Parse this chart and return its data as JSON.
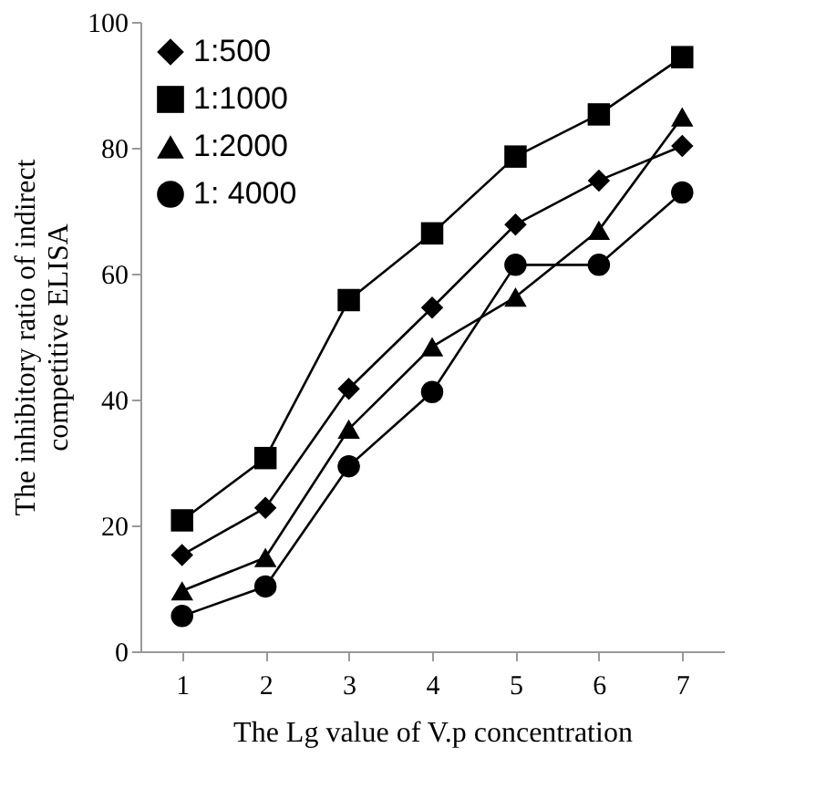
{
  "chart_data": {
    "type": "line",
    "xlabel": "The Lg value of  V.p concentration",
    "ylabel": "The inhibitory ratio of indirect competitive ELISA",
    "categories": [
      "1",
      "2",
      "3",
      "4",
      "5",
      "6",
      "7"
    ],
    "series": [
      {
        "name": "1:500",
        "color": "#000000",
        "marker": "diamond",
        "values": [
          15.3,
          22.8,
          41.7,
          54.6,
          67.8,
          74.8,
          80.3
        ]
      },
      {
        "name": "1:1000",
        "color": "#000000",
        "marker": "square",
        "values": [
          20.8,
          30.7,
          55.8,
          66.4,
          78.6,
          85.3,
          94.4
        ]
      },
      {
        "name": "1:2000",
        "color": "#000000",
        "marker": "triangle",
        "values": [
          9.6,
          14.9,
          35.3,
          48.4,
          56.3,
          66.9,
          84.9
        ]
      },
      {
        "name": " 1: 4000",
        "color": "#000000",
        "marker": "circle",
        "values": [
          5.6,
          10.3,
          29.4,
          41.2,
          61.4,
          61.4,
          72.9
        ]
      }
    ],
    "ylim": [
      0,
      100
    ],
    "yticks": [
      0,
      20,
      40,
      60,
      80,
      100
    ],
    "grid": false,
    "legend": "top left",
    "line_style": "solid"
  }
}
